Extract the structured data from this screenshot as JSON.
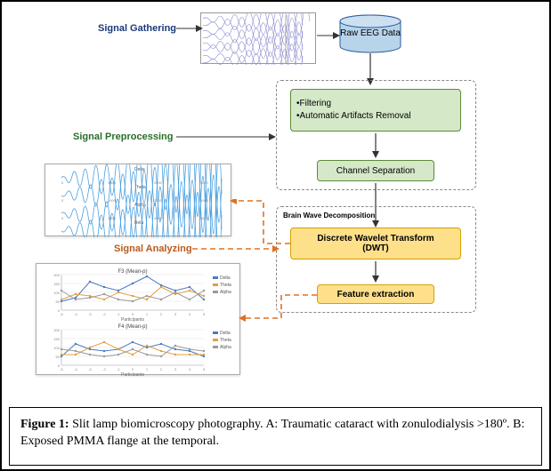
{
  "labels": {
    "gathering": "Signal Gathering",
    "preprocessing": "Signal Preprocessing",
    "analyzing": "Signal Analyzing",
    "raw_data": "Raw EEG Data",
    "brain_wave": "Brain Wave Decomposition"
  },
  "boxes": {
    "filtering_l1": "•Filtering",
    "filtering_l2": "•Automatic Artifacts Removal",
    "channel_sep": "Channel Separation",
    "dwt_l1": "Discrete Wavelet Transform",
    "dwt_l2": "(DWT)",
    "feature": "Feature extraction"
  },
  "colors": {
    "gathering": "#1a3a7a",
    "preprocessing": "#2a6e2a",
    "analyzing": "#b85a1a",
    "green_fill": "#d5e8c8",
    "green_border": "#5a8a3a",
    "yellow_fill": "#ffe08a",
    "yellow_border": "#d4a000",
    "db_fill": "#b8d4ea",
    "db_border": "#2a5a9a",
    "orange_dash": "#e07020",
    "arrow": "#333333",
    "signal": "#8a8ad0",
    "chart_blue": "#4a7ac0",
    "chart_orange": "#e0a040",
    "chart_grey": "#999999"
  },
  "label_fontsize": 11,
  "box_fontsize": 10,
  "caption": {
    "bold": "Figure 1:",
    "text": " Slit lamp biomicroscopy photography. A: Traumatic cataract with zonulodialysis >180º. B: Exposed PMMA flange at the temporal."
  },
  "mini1": {
    "rows": [
      "Delta",
      "Theta",
      "Alpha",
      "Beta"
    ],
    "color": "#4aa0e0"
  },
  "mini2": {
    "title1": "F3 (Mean-p)",
    "title2": "F4 (Mean-p)",
    "legend": [
      "Delta",
      "Theta",
      "Alpha"
    ],
    "series_colors": [
      "#4a7ac0",
      "#e0a040",
      "#999999"
    ],
    "x": [
      -5,
      -4,
      -3,
      -2,
      -1,
      0,
      1,
      2,
      3,
      4,
      5
    ],
    "s1_a": [
      50,
      70,
      160,
      130,
      110,
      150,
      190,
      140,
      110,
      130,
      60
    ],
    "s1_b": [
      60,
      90,
      80,
      60,
      100,
      80,
      60,
      130,
      90,
      110,
      80
    ],
    "s1_c": [
      110,
      60,
      70,
      90,
      60,
      50,
      80,
      60,
      100,
      60,
      110
    ],
    "s2_a": [
      50,
      120,
      90,
      80,
      90,
      130,
      100,
      120,
      90,
      80,
      50
    ],
    "s2_b": [
      60,
      60,
      100,
      130,
      90,
      60,
      110,
      80,
      60,
      60,
      60
    ],
    "s2_c": [
      90,
      80,
      60,
      50,
      60,
      90,
      60,
      50,
      110,
      90,
      80
    ],
    "ylim": [
      0,
      200
    ]
  }
}
